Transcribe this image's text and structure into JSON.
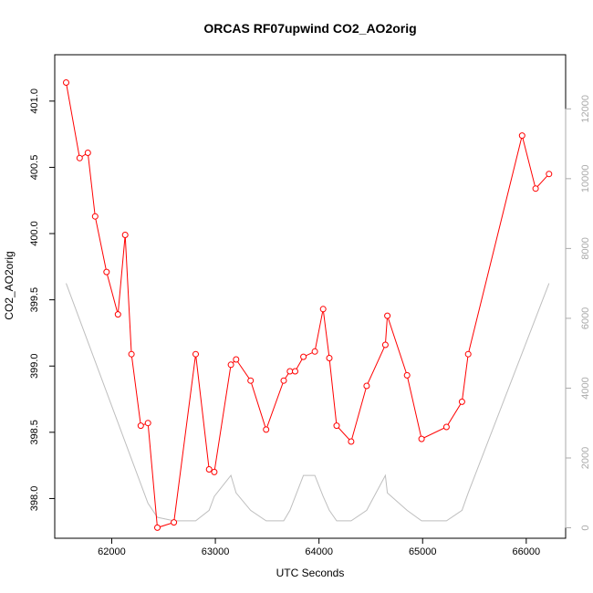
{
  "chart_data": {
    "type": "line",
    "title": "ORCAS RF07upwind CO2_AO2orig",
    "xlabel": "UTC Seconds",
    "ylabel": "CO2_AO2orig",
    "xlim": [
      61450,
      66380
    ],
    "ylim": [
      397.7,
      401.35
    ],
    "y2lim": [
      -300,
      13550
    ],
    "x_ticks": [
      62000,
      63000,
      64000,
      65000,
      66000
    ],
    "y_ticks": [
      398.0,
      398.5,
      399.0,
      399.5,
      400.0,
      400.5,
      401.0
    ],
    "y_tick_labels": [
      "398.0",
      "398.5",
      "399.0",
      "399.5",
      "400.0",
      "400.5",
      "401.0"
    ],
    "y2_ticks": [
      0,
      2000,
      4000,
      6000,
      8000,
      10000,
      12000
    ],
    "grid": false,
    "colors": {
      "co2": "#ff0000",
      "altitude": "#bebebe",
      "axis": "#000000",
      "axis_right": "#aaaaaa"
    },
    "series": [
      {
        "axis": "left",
        "markers": true,
        "x": [
          61560,
          61690,
          61770,
          61840,
          61950,
          62060,
          62130,
          62190,
          62280,
          62350,
          62440,
          62600,
          62810,
          62940,
          62990,
          63150,
          63200,
          63340,
          63490,
          63660,
          63720,
          63770,
          63850,
          63960,
          64040,
          64100,
          64170,
          64310,
          64460,
          64640,
          64660,
          64850,
          64990,
          65230,
          65380,
          65440,
          65960,
          66090,
          66220
        ],
        "values": [
          401.14,
          400.57,
          400.61,
          400.13,
          399.71,
          399.39,
          399.99,
          399.09,
          398.55,
          398.57,
          397.78,
          397.82,
          399.09,
          398.22,
          398.2,
          399.01,
          399.05,
          398.89,
          398.52,
          398.89,
          398.96,
          398.96,
          399.07,
          399.11,
          399.43,
          399.06,
          398.55,
          398.43,
          398.85,
          399.16,
          399.38,
          398.93,
          398.45,
          398.54,
          398.73,
          399.09,
          400.74,
          400.34,
          400.45
        ]
      },
      {
        "axis": "right",
        "markers": false,
        "x": [
          61560,
          62350,
          62440,
          62600,
          62810,
          62940,
          62990,
          63150,
          63200,
          63340,
          63490,
          63660,
          63720,
          63850,
          63960,
          64040,
          64100,
          64170,
          64310,
          64460,
          64640,
          64660,
          64850,
          64990,
          65230,
          65380,
          65440,
          66220
        ],
        "values": [
          7000,
          700,
          300,
          200,
          200,
          500,
          900,
          1500,
          1000,
          500,
          200,
          200,
          500,
          1500,
          1500,
          900,
          500,
          200,
          200,
          500,
          1500,
          1000,
          500,
          200,
          200,
          500,
          1000,
          7000
        ]
      }
    ]
  }
}
